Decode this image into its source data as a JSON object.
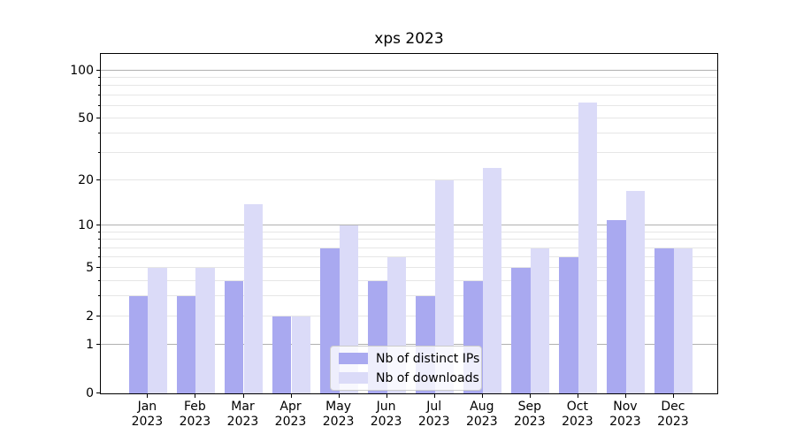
{
  "chart_data": {
    "type": "bar",
    "title": "xps 2023",
    "categories": [
      "Jan",
      "Feb",
      "Mar",
      "Apr",
      "May",
      "Jun",
      "Jul",
      "Aug",
      "Sep",
      "Oct",
      "Nov",
      "Dec"
    ],
    "year": "2023",
    "series": [
      {
        "name": "Nb of distinct IPs",
        "color": "#a9a9f0",
        "values": [
          3,
          3,
          4,
          2,
          7,
          4,
          3,
          4,
          5,
          6,
          11,
          7
        ]
      },
      {
        "name": "Nb of downloads",
        "color": "#dbdbf8",
        "values": [
          5,
          5,
          14,
          2,
          10,
          6,
          20,
          24,
          7,
          63,
          17,
          7
        ]
      }
    ],
    "yscale": "log1p",
    "ylim": [
      0,
      127.4
    ],
    "yticks": [
      0,
      1,
      2,
      5,
      10,
      20,
      50,
      100
    ],
    "major_gridlines": [
      1,
      10,
      100
    ],
    "minor_gridlines": [
      2,
      3,
      4,
      5,
      6,
      7,
      8,
      9,
      20,
      30,
      40,
      50,
      60,
      70,
      80,
      90
    ],
    "grid": true,
    "legend_position": "lower-center-inside",
    "colors": {
      "spine": "#000000",
      "major_grid": "#b0b0b0",
      "minor_grid": "#e6e6e6"
    }
  }
}
